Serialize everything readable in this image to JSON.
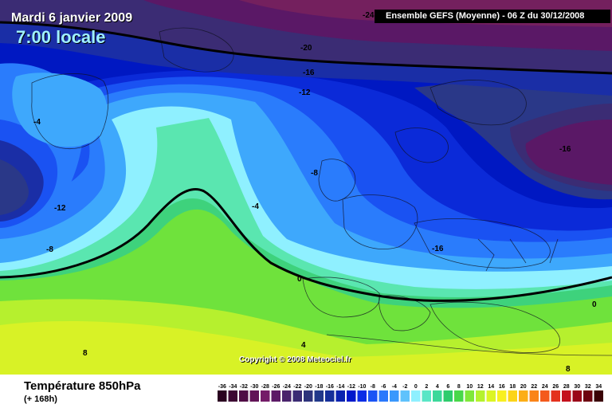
{
  "header": {
    "date": "Mardi 6 janvier 2009",
    "time": "7:00 locale",
    "model": "Ensemble GEFS (Moyenne)  -  06 Z du 30/12/2008"
  },
  "map": {
    "contour_labels": [
      {
        "id": "m24",
        "text": "-24"
      },
      {
        "id": "m20",
        "text": "-20"
      },
      {
        "id": "m16a",
        "text": "-16"
      },
      {
        "id": "m12a",
        "text": "-12"
      },
      {
        "id": "m4a",
        "text": "-4"
      },
      {
        "id": "m12b",
        "text": "-12"
      },
      {
        "id": "m8a",
        "text": "-8"
      },
      {
        "id": "m8b",
        "text": "-8"
      },
      {
        "id": "m4b",
        "text": "-4"
      },
      {
        "id": "m16b",
        "text": "-16"
      },
      {
        "id": "m16c",
        "text": "-16"
      },
      {
        "id": "z0a",
        "text": "0"
      },
      {
        "id": "z0b",
        "text": "0"
      },
      {
        "id": "p4",
        "text": "4"
      },
      {
        "id": "p8a",
        "text": "8"
      },
      {
        "id": "p8b",
        "text": "8"
      }
    ],
    "copyright": "Copyright © 2008 Meteociel.fr"
  },
  "footer": {
    "variable": "Température 850hPa",
    "lead": "(+ 168h)"
  },
  "legend": {
    "ticks": [
      "-36",
      "-34",
      "-32",
      "-30",
      "-28",
      "-26",
      "-24",
      "-22",
      "-20",
      "-18",
      "-16",
      "-14",
      "-12",
      "-10",
      "-8",
      "-6",
      "-4",
      "-2",
      "0",
      "2",
      "4",
      "6",
      "8",
      "10",
      "12",
      "14",
      "16",
      "18",
      "20",
      "22",
      "24",
      "26",
      "28",
      "30",
      "32",
      "34"
    ],
    "colors": [
      "#2a0220",
      "#3d0733",
      "#4f0c45",
      "#621457",
      "#741c68",
      "#5c1a66",
      "#4a236c",
      "#3b2c74",
      "#2e347c",
      "#21388a",
      "#152f9a",
      "#0a23b0",
      "#0018cc",
      "#0a2de6",
      "#1a54f5",
      "#2a78fc",
      "#3a98fc",
      "#5fc2fc",
      "#8ff0ff",
      "#5ae6c6",
      "#3cd89a",
      "#2ecc6c",
      "#48d84a",
      "#80e83a",
      "#b5f22e",
      "#dcf524",
      "#f8f020",
      "#fcd418",
      "#fcae16",
      "#fa8418",
      "#f45a1c",
      "#e4321e",
      "#c4101c",
      "#9a0618",
      "#6e0410",
      "#3a0206"
    ]
  }
}
